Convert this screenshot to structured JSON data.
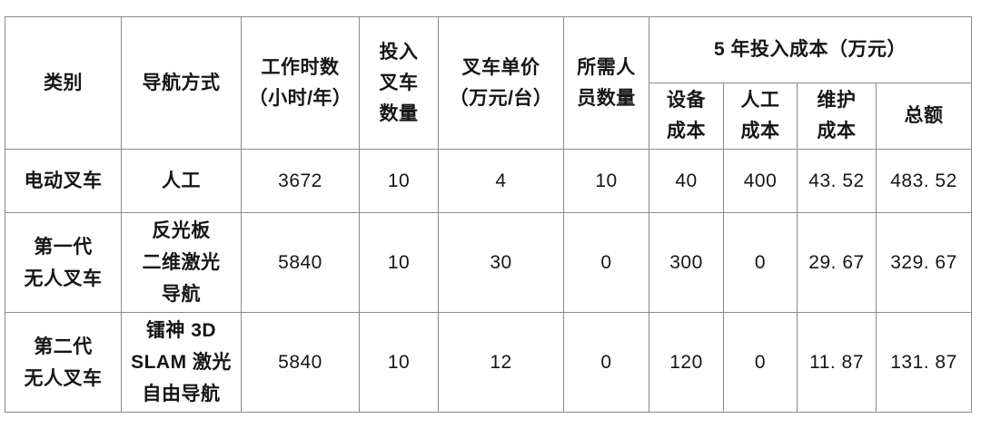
{
  "colors": {
    "grid_border": "#8a8a8a",
    "text": "#161616",
    "background": "#ffffff"
  },
  "table": {
    "headers": {
      "category": "类别",
      "navigation": "导航方式",
      "work_hours": [
        "工作时数",
        "（小时/年）"
      ],
      "forklift_count": [
        "投入",
        "叉车",
        "数量"
      ],
      "unit_price": [
        "叉车单价",
        "（万元/台）"
      ],
      "staff_count": [
        "所需人",
        "员数量"
      ],
      "cost_group": "5 年投入成本（万元）",
      "cost_equipment": [
        "设备",
        "成本"
      ],
      "cost_labor": [
        "人工",
        "成本"
      ],
      "cost_maintenance": [
        "维护",
        "成本"
      ],
      "cost_total": "总额"
    },
    "rows": [
      {
        "category": [
          "电动叉车"
        ],
        "navigation": [
          "人工"
        ],
        "work_hours": "3672",
        "forklift_count": "10",
        "unit_price": "4",
        "staff_count": "10",
        "cost_equipment": "40",
        "cost_labor": "400",
        "cost_maintenance": "43. 52",
        "cost_total": "483. 52"
      },
      {
        "category": [
          "第一代",
          "无人叉车"
        ],
        "navigation": [
          "反光板",
          "二维激光",
          "导航"
        ],
        "work_hours": "5840",
        "forklift_count": "10",
        "unit_price": "30",
        "staff_count": "0",
        "cost_equipment": "300",
        "cost_labor": "0",
        "cost_maintenance": "29. 67",
        "cost_total": "329. 67"
      },
      {
        "category": [
          "第二代",
          "无人叉车"
        ],
        "navigation": [
          "镭神 3D",
          "SLAM 激光",
          "自由导航"
        ],
        "work_hours": "5840",
        "forklift_count": "10",
        "unit_price": "12",
        "staff_count": "0",
        "cost_equipment": "120",
        "cost_labor": "0",
        "cost_maintenance": "11. 87",
        "cost_total": "131. 87"
      }
    ]
  }
}
